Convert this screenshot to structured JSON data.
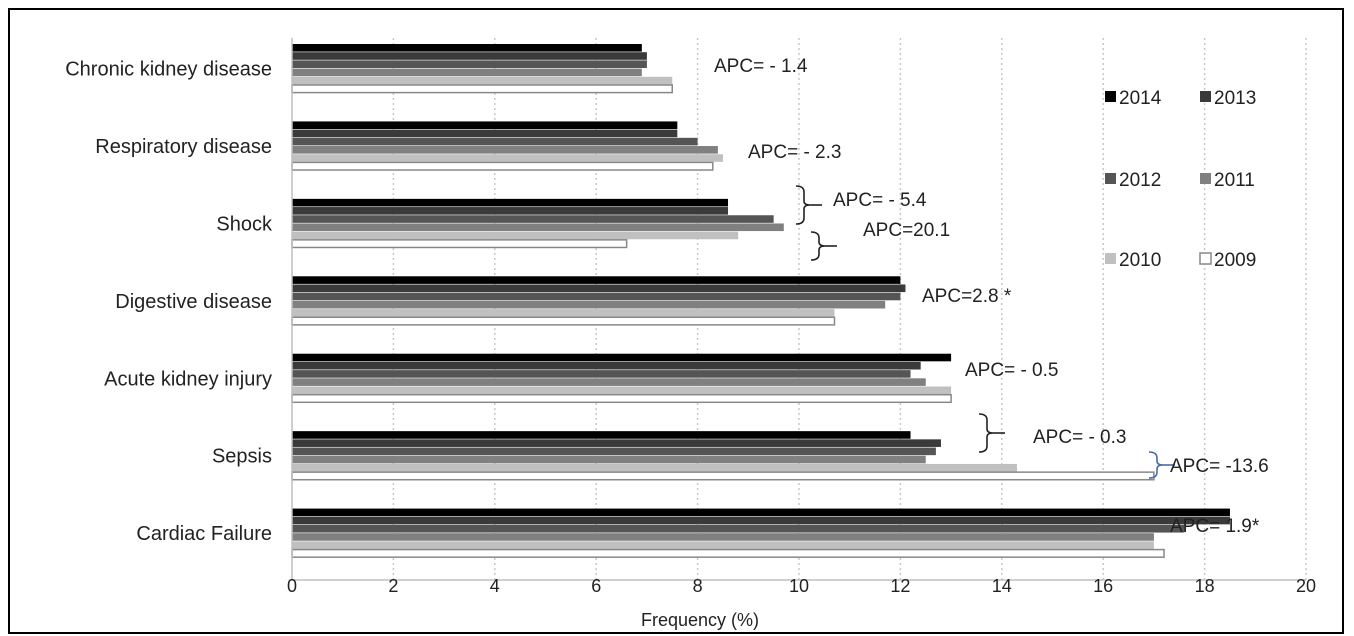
{
  "chart_data": {
    "type": "bar",
    "orientation": "horizontal",
    "title": "",
    "xlabel": "Frequency (%)",
    "ylabel": "",
    "xlim": [
      0,
      20
    ],
    "xticks": [
      0,
      2,
      4,
      6,
      8,
      10,
      12,
      14,
      16,
      18,
      20
    ],
    "grid": "vertical dotted",
    "legend_position": "right",
    "categories": [
      "Chronic kidney disease",
      "Respiratory disease",
      "Shock",
      "Digestive disease",
      "Acute kidney injury",
      "Sepsis",
      "Cardiac Failure"
    ],
    "series": [
      {
        "name": "2014",
        "color": "#000000",
        "values": [
          6.9,
          7.6,
          8.6,
          12.0,
          13.0,
          12.2,
          18.5
        ]
      },
      {
        "name": "2013",
        "color": "#3a3a3a",
        "values": [
          7.0,
          7.6,
          8.6,
          12.1,
          12.4,
          12.8,
          18.5
        ]
      },
      {
        "name": "2012",
        "color": "#555555",
        "values": [
          7.0,
          8.0,
          9.5,
          12.0,
          12.2,
          12.7,
          17.6
        ]
      },
      {
        "name": "2011",
        "color": "#808080",
        "values": [
          6.9,
          8.4,
          9.7,
          11.7,
          12.5,
          12.5,
          17.0
        ]
      },
      {
        "name": "2010",
        "color": "#c0c0c0",
        "values": [
          7.5,
          8.5,
          8.8,
          10.7,
          13.0,
          14.3,
          17.0
        ]
      },
      {
        "name": "2009",
        "color": "#ffffff",
        "stroke": "#888888",
        "values": [
          7.5,
          8.3,
          6.6,
          10.7,
          13.0,
          17.0,
          17.2
        ]
      }
    ],
    "annotations": [
      {
        "text": "APC= - 1.4"
      },
      {
        "text": "APC= - 2.3"
      },
      {
        "text": "APC= - 5.4"
      },
      {
        "text": "APC=20.1"
      },
      {
        "text": "APC=2.8 *"
      },
      {
        "text": "APC= - 0.5"
      },
      {
        "text": "APC= - 0.3"
      },
      {
        "text": "APC= -13.6"
      },
      {
        "text": "APC= 1.9*"
      }
    ],
    "legend": [
      "2014",
      "2013",
      "2012",
      "2011",
      "2010",
      "2009"
    ]
  }
}
